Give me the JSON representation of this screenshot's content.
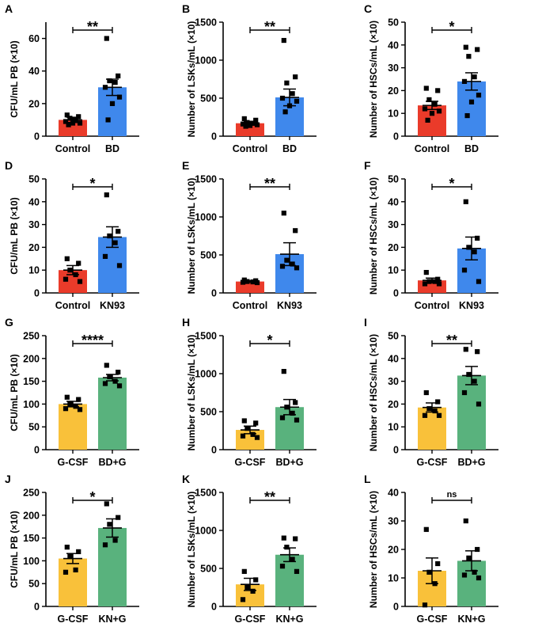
{
  "colors": {
    "red": "#ea3b2a",
    "blue": "#3f88ec",
    "yellow": "#f9c13a",
    "green": "#59b27d",
    "ink": "#000000"
  },
  "chart_data": [
    {
      "letter": "A",
      "type": "bar",
      "ylabel": "CFU/mL PB (×10)",
      "ylim": [
        0,
        70
      ],
      "ticks": [
        0,
        20,
        40,
        60
      ],
      "categories": [
        "Control",
        "BD"
      ],
      "colors": [
        "red",
        "blue"
      ],
      "values": [
        10,
        30
      ],
      "sem": [
        1.6,
        5
      ],
      "points": [
        [
          13,
          12,
          11,
          10,
          9,
          8,
          8,
          7
        ],
        [
          60,
          37,
          34,
          33,
          30,
          24,
          20,
          10
        ]
      ],
      "sig": "**"
    },
    {
      "letter": "B",
      "type": "bar",
      "ylabel": "Number of LSKs/mL (×10)",
      "ylim": [
        0,
        1500
      ],
      "ticks": [
        0,
        500,
        1000,
        1500
      ],
      "categories": [
        "Control",
        "BD"
      ],
      "colors": [
        "red",
        "blue"
      ],
      "values": [
        170,
        510
      ],
      "sem": [
        25,
        110
      ],
      "points": [
        [
          230,
          210,
          180,
          170,
          160,
          150,
          140,
          130
        ],
        [
          1260,
          780,
          700,
          560,
          500,
          460,
          400,
          320
        ]
      ],
      "sig": "**"
    },
    {
      "letter": "C",
      "type": "bar",
      "ylabel": "Number of HSCs/mL (×10)",
      "ylim": [
        0,
        50
      ],
      "ticks": [
        0,
        10,
        20,
        30,
        40,
        50
      ],
      "categories": [
        "Control",
        "BD"
      ],
      "colors": [
        "red",
        "blue"
      ],
      "values": [
        13.5,
        24
      ],
      "sem": [
        1.8,
        3.8
      ],
      "points": [
        [
          21,
          20,
          16,
          14,
          12,
          11,
          10,
          7
        ],
        [
          39,
          38,
          35,
          26,
          24,
          18,
          15,
          9
        ]
      ],
      "sig": "*"
    },
    {
      "letter": "D",
      "type": "bar",
      "ylabel": "CFU/mL PB (×10)",
      "ylim": [
        0,
        50
      ],
      "ticks": [
        0,
        10,
        20,
        30,
        40,
        50
      ],
      "categories": [
        "Control",
        "KN93"
      ],
      "colors": [
        "red",
        "blue"
      ],
      "values": [
        10,
        24.5
      ],
      "sem": [
        2,
        4.5
      ],
      "points": [
        [
          15,
          13,
          10,
          8,
          6,
          5
        ],
        [
          43,
          27,
          25,
          22,
          16,
          12
        ]
      ],
      "sig": "*"
    },
    {
      "letter": "E",
      "type": "bar",
      "ylabel": "Number of LSKs/mL (×10)",
      "ylim": [
        0,
        1500
      ],
      "ticks": [
        0,
        500,
        1000,
        1500
      ],
      "categories": [
        "Control",
        "KN93"
      ],
      "colors": [
        "red",
        "blue"
      ],
      "values": [
        150,
        510
      ],
      "sem": [
        10,
        150
      ],
      "points": [
        [
          170,
          160,
          150,
          145,
          140,
          135
        ],
        [
          1050,
          820,
          430,
          380,
          350,
          330
        ]
      ],
      "sig": "**"
    },
    {
      "letter": "F",
      "type": "bar",
      "ylabel": "Number of HSCs/mL (×10)",
      "ylim": [
        0,
        50
      ],
      "ticks": [
        0,
        10,
        20,
        30,
        40,
        50
      ],
      "categories": [
        "Control",
        "KN93"
      ],
      "colors": [
        "red",
        "blue"
      ],
      "values": [
        5.5,
        19.5
      ],
      "sem": [
        1,
        5
      ],
      "points": [
        [
          9,
          6,
          5,
          5,
          4,
          4
        ],
        [
          40,
          24,
          20,
          18,
          10,
          5
        ]
      ],
      "sig": "*"
    },
    {
      "letter": "G",
      "type": "bar",
      "ylabel": "CFU/mL PB (×10)",
      "ylim": [
        0,
        250
      ],
      "ticks": [
        0,
        50,
        100,
        150,
        200,
        250
      ],
      "categories": [
        "G-CSF",
        "BD+G"
      ],
      "colors": [
        "yellow",
        "green"
      ],
      "values": [
        100,
        158
      ],
      "sem": [
        6,
        7
      ],
      "points": [
        [
          115,
          110,
          100,
          95,
          90,
          88
        ],
        [
          185,
          170,
          160,
          150,
          145,
          140
        ]
      ],
      "sig": "****"
    },
    {
      "letter": "H",
      "type": "bar",
      "ylabel": "Number of LSKs/mL (×10)",
      "ylim": [
        0,
        1500
      ],
      "ticks": [
        0,
        500,
        1000,
        1500
      ],
      "categories": [
        "G-CSF",
        "BD+G"
      ],
      "colors": [
        "yellow",
        "green"
      ],
      "values": [
        260,
        560
      ],
      "sem": [
        50,
        100
      ],
      "points": [
        [
          380,
          350,
          280,
          200,
          180,
          160
        ],
        [
          1030,
          620,
          560,
          480,
          420,
          390
        ]
      ],
      "sig": "*"
    },
    {
      "letter": "I",
      "type": "bar",
      "ylabel": "Number of HSCs/mL (×10)",
      "ylim": [
        0,
        50
      ],
      "ticks": [
        0,
        10,
        20,
        30,
        40,
        50
      ],
      "categories": [
        "G-CSF",
        "BD+G"
      ],
      "colors": [
        "yellow",
        "green"
      ],
      "values": [
        18.5,
        32.5
      ],
      "sem": [
        2,
        4
      ],
      "points": [
        [
          25,
          21,
          18,
          17,
          15,
          15
        ],
        [
          44,
          43,
          33,
          30,
          25,
          20
        ]
      ],
      "sig": "**"
    },
    {
      "letter": "J",
      "type": "bar",
      "ylabel": "CFU/mL PB (×10)",
      "ylim": [
        0,
        250
      ],
      "ticks": [
        0,
        50,
        100,
        150,
        200,
        250
      ],
      "categories": [
        "G-CSF",
        "KN+G"
      ],
      "colors": [
        "yellow",
        "green"
      ],
      "values": [
        105,
        172
      ],
      "sem": [
        11,
        20
      ],
      "points": [
        [
          130,
          120,
          110,
          80,
          75
        ],
        [
          225,
          195,
          180,
          145,
          135
        ]
      ],
      "sig": "*"
    },
    {
      "letter": "K",
      "type": "bar",
      "ylabel": "Number of LSKs/mL (×10)",
      "ylim": [
        0,
        1500
      ],
      "ticks": [
        0,
        500,
        1000,
        1500
      ],
      "categories": [
        "G-CSF",
        "KN+G"
      ],
      "colors": [
        "yellow",
        "green"
      ],
      "values": [
        290,
        680
      ],
      "sem": [
        80,
        90
      ],
      "points": [
        [
          460,
          350,
          250,
          200,
          90
        ],
        [
          900,
          890,
          780,
          620,
          530,
          460
        ]
      ],
      "sig": "**"
    },
    {
      "letter": "L",
      "type": "bar",
      "ylabel": "Number of HSCs/mL (×10)",
      "ylim": [
        0,
        40
      ],
      "ticks": [
        0,
        10,
        20,
        30,
        40
      ],
      "categories": [
        "G-CSF",
        "KN+G"
      ],
      "colors": [
        "yellow",
        "green"
      ],
      "values": [
        12.5,
        16
      ],
      "sem": [
        4.5,
        3.5
      ],
      "points": [
        [
          27,
          15,
          12,
          8,
          0.5
        ],
        [
          30,
          20,
          17,
          12,
          11,
          10
        ]
      ],
      "sig": "ns"
    }
  ]
}
